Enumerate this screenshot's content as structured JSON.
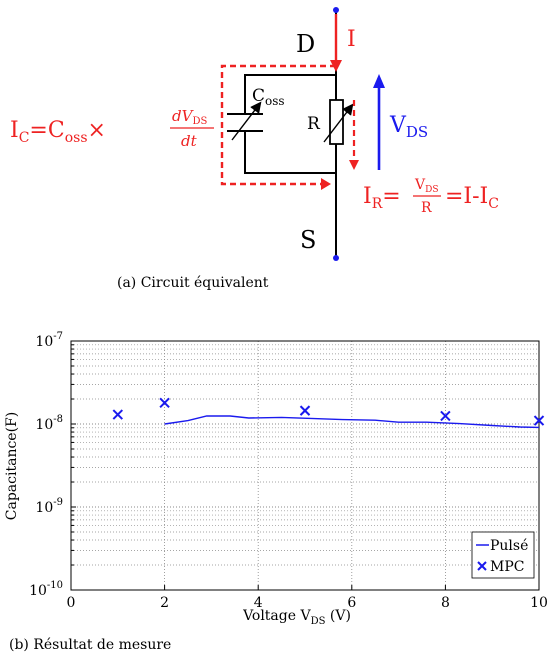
{
  "circuit": {
    "drain_label": "D",
    "source_label": "S",
    "current_label": "I",
    "coss_label": "C",
    "coss_sub": "oss",
    "r_label": "R",
    "vds_label": "V",
    "vds_sub": "DS",
    "ic_eq": {
      "lhs": "I",
      "lhs_sub": "C",
      "eq": "=C",
      "coss_sub": "oss",
      "times": "×",
      "num": "dV",
      "num_sub": "DS",
      "den": "dt"
    },
    "ir_eq": {
      "lhs": "I",
      "lhs_sub": "R",
      "eq": "=",
      "num": "V",
      "num_sub": "DS",
      "den": "R",
      "rhs": "=I-I",
      "rhs_sub": "C"
    },
    "colors": {
      "red": "#ee2222",
      "blue": "#1a1aee",
      "black": "#000000"
    }
  },
  "caption_a": "(a) Circuit équivalent",
  "caption_b": "(b) Résultat de mesure",
  "chart_data": {
    "type": "line",
    "ylabel": "Capacitance(F)",
    "xlabel": "Voltage V",
    "xlabel_sub": "DS",
    "xlabel_unit": " (V)",
    "xlim": [
      0,
      10
    ],
    "ylim": [
      1e-10,
      1e-07
    ],
    "yscale": "log",
    "grid": true,
    "xticks": [
      "0",
      "2",
      "4",
      "6",
      "8",
      "10"
    ],
    "yticks": [
      {
        "base": "10",
        "exp": "-10"
      },
      {
        "base": "10",
        "exp": "-9"
      },
      {
        "base": "10",
        "exp": "-8"
      },
      {
        "base": "10",
        "exp": "-7"
      }
    ],
    "legend_position": "bottom-right",
    "series": [
      {
        "name": "Pulsé",
        "kind": "line",
        "color": "#1a1aee",
        "x": [
          2.0,
          2.5,
          2.9,
          3.4,
          3.8,
          4.5,
          5.2,
          5.8,
          6.5,
          7.0,
          7.6,
          8.3,
          9.0,
          9.6,
          10.0
        ],
        "y": [
          1e-08,
          1.1e-08,
          1.25e-08,
          1.25e-08,
          1.18e-08,
          1.2e-08,
          1.16e-08,
          1.13e-08,
          1.11e-08,
          1.05e-08,
          1.05e-08,
          1.01e-08,
          9.6e-09,
          9.2e-09,
          9.1e-09
        ]
      },
      {
        "name": "MPC",
        "kind": "marker",
        "marker": "x",
        "color": "#1a1aee",
        "x": [
          1,
          2,
          5,
          8,
          10
        ],
        "y": [
          1.3e-08,
          1.8e-08,
          1.45e-08,
          1.25e-08,
          1.1e-08
        ]
      }
    ]
  }
}
